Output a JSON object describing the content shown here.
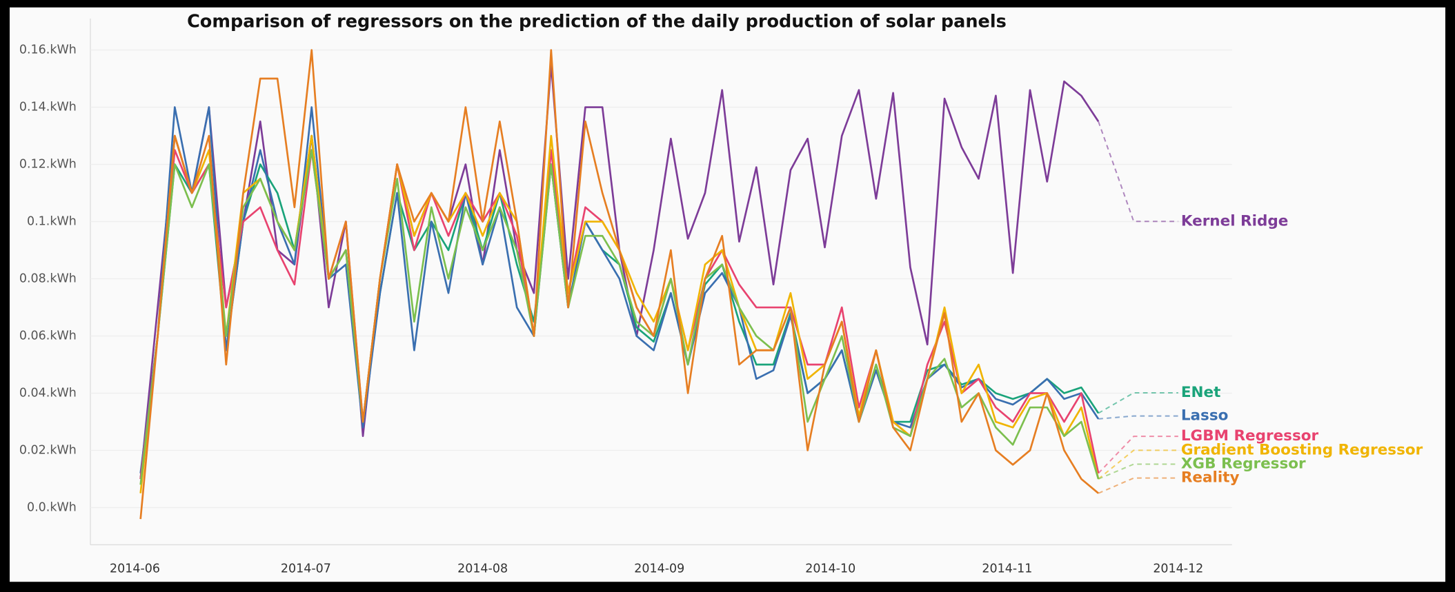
{
  "chart_data": {
    "type": "line",
    "title": "Comparison of regressors on the prediction of the daily production of solar panels",
    "x": [
      "2014-06-02",
      "2014-06-05",
      "2014-06-08",
      "2014-06-11",
      "2014-06-14",
      "2014-06-17",
      "2014-06-20",
      "2014-06-23",
      "2014-06-26",
      "2014-06-29",
      "2014-07-02",
      "2014-07-05",
      "2014-07-08",
      "2014-07-11",
      "2014-07-14",
      "2014-07-17",
      "2014-07-20",
      "2014-07-23",
      "2014-07-26",
      "2014-07-29",
      "2014-08-01",
      "2014-08-04",
      "2014-08-07",
      "2014-08-10",
      "2014-08-13",
      "2014-08-16",
      "2014-08-19",
      "2014-08-22",
      "2014-08-25",
      "2014-08-28",
      "2014-08-31",
      "2014-09-03",
      "2014-09-06",
      "2014-09-09",
      "2014-09-12",
      "2014-09-15",
      "2014-09-18",
      "2014-09-21",
      "2014-09-24",
      "2014-09-27",
      "2014-09-30",
      "2014-10-03",
      "2014-10-06",
      "2014-10-09",
      "2014-10-12",
      "2014-10-15",
      "2014-10-18",
      "2014-10-21",
      "2014-10-24",
      "2014-10-27",
      "2014-10-30",
      "2014-11-02",
      "2014-11-05",
      "2014-11-08",
      "2014-11-11",
      "2014-11-14",
      "2014-11-17"
    ],
    "series": [
      {
        "name": "Kernel Ridge",
        "color": "#7d3c98",
        "values": [
          0.01,
          0.07,
          0.13,
          0.11,
          0.14,
          0.07,
          0.1,
          0.135,
          0.09,
          0.085,
          0.13,
          0.07,
          0.1,
          0.025,
          0.08,
          0.12,
          0.095,
          0.11,
          0.1,
          0.12,
          0.085,
          0.125,
          0.09,
          0.075,
          0.155,
          0.08,
          0.14,
          0.14,
          0.09,
          0.06,
          0.09,
          0.129,
          0.094,
          0.11,
          0.146,
          0.093,
          0.119,
          0.078,
          0.118,
          0.129,
          0.091,
          0.13,
          0.146,
          0.108,
          0.145,
          0.084,
          0.057,
          0.143,
          0.126,
          0.115,
          0.144,
          0.082,
          0.146,
          0.114,
          0.149,
          0.144,
          0.135
        ]
      },
      {
        "name": "ENet",
        "color": "#1aa37a",
        "values": [
          0.01,
          0.06,
          0.12,
          0.11,
          0.12,
          0.055,
          0.1,
          0.12,
          0.11,
          0.09,
          0.13,
          0.08,
          0.09,
          0.03,
          0.075,
          0.11,
          0.09,
          0.1,
          0.09,
          0.11,
          0.09,
          0.11,
          0.085,
          0.065,
          0.12,
          0.07,
          0.1,
          0.09,
          0.085,
          0.063,
          0.058,
          0.075,
          0.05,
          0.078,
          0.085,
          0.065,
          0.05,
          0.05,
          0.068,
          0.04,
          0.045,
          0.055,
          0.03,
          0.05,
          0.03,
          0.03,
          0.048,
          0.05,
          0.043,
          0.045,
          0.04,
          0.038,
          0.04,
          0.045,
          0.04,
          0.042,
          0.033
        ]
      },
      {
        "name": "Lasso",
        "color": "#3a6fb0",
        "values": [
          0.012,
          0.06,
          0.14,
          0.11,
          0.14,
          0.055,
          0.1,
          0.125,
          0.1,
          0.085,
          0.14,
          0.08,
          0.085,
          0.028,
          0.075,
          0.11,
          0.055,
          0.1,
          0.075,
          0.11,
          0.085,
          0.105,
          0.07,
          0.06,
          0.12,
          0.07,
          0.1,
          0.09,
          0.08,
          0.06,
          0.055,
          0.075,
          0.05,
          0.075,
          0.082,
          0.07,
          0.045,
          0.048,
          0.067,
          0.04,
          0.045,
          0.055,
          0.03,
          0.048,
          0.03,
          0.028,
          0.045,
          0.05,
          0.042,
          0.045,
          0.038,
          0.036,
          0.04,
          0.045,
          0.038,
          0.04,
          0.031
        ]
      },
      {
        "name": "LGBM Regressor",
        "color": "#e8436f",
        "values": [
          0.01,
          0.06,
          0.125,
          0.11,
          0.12,
          0.07,
          0.1,
          0.105,
          0.09,
          0.078,
          0.125,
          0.08,
          0.1,
          0.03,
          0.08,
          0.12,
          0.09,
          0.11,
          0.095,
          0.11,
          0.1,
          0.11,
          0.095,
          0.06,
          0.125,
          0.075,
          0.105,
          0.1,
          0.09,
          0.07,
          0.06,
          0.08,
          0.055,
          0.08,
          0.09,
          0.078,
          0.07,
          0.07,
          0.07,
          0.05,
          0.05,
          0.07,
          0.035,
          0.055,
          0.03,
          0.025,
          0.05,
          0.065,
          0.04,
          0.045,
          0.035,
          0.03,
          0.04,
          0.04,
          0.03,
          0.04,
          0.012
        ]
      },
      {
        "name": "Gradient Boosting Regressor",
        "color": "#f0b400",
        "values": [
          0.005,
          0.06,
          0.13,
          0.11,
          0.125,
          0.06,
          0.11,
          0.115,
          0.1,
          0.09,
          0.13,
          0.08,
          0.09,
          0.03,
          0.08,
          0.12,
          0.095,
          0.11,
          0.1,
          0.11,
          0.095,
          0.11,
          0.1,
          0.06,
          0.13,
          0.075,
          0.1,
          0.1,
          0.09,
          0.075,
          0.065,
          0.08,
          0.055,
          0.085,
          0.09,
          0.07,
          0.055,
          0.055,
          0.075,
          0.045,
          0.05,
          0.065,
          0.032,
          0.055,
          0.03,
          0.025,
          0.045,
          0.07,
          0.04,
          0.05,
          0.03,
          0.028,
          0.038,
          0.04,
          0.025,
          0.035,
          0.01
        ]
      },
      {
        "name": "XGB Regressor",
        "color": "#7cbf4f",
        "values": [
          0.008,
          0.06,
          0.12,
          0.105,
          0.12,
          0.06,
          0.105,
          0.115,
          0.1,
          0.09,
          0.125,
          0.08,
          0.09,
          0.03,
          0.08,
          0.115,
          0.065,
          0.105,
          0.08,
          0.105,
          0.09,
          0.105,
          0.09,
          0.06,
          0.12,
          0.07,
          0.095,
          0.095,
          0.085,
          0.065,
          0.06,
          0.08,
          0.05,
          0.08,
          0.085,
          0.07,
          0.06,
          0.055,
          0.07,
          0.03,
          0.045,
          0.06,
          0.03,
          0.05,
          0.028,
          0.025,
          0.045,
          0.052,
          0.035,
          0.04,
          0.028,
          0.022,
          0.035,
          0.035,
          0.025,
          0.03,
          0.01
        ]
      },
      {
        "name": "Reality",
        "color": "#e67e22",
        "values": [
          -0.004,
          0.06,
          0.13,
          0.11,
          0.13,
          0.05,
          0.11,
          0.15,
          0.15,
          0.105,
          0.16,
          0.08,
          0.1,
          0.03,
          0.08,
          0.12,
          0.1,
          0.11,
          0.1,
          0.14,
          0.1,
          0.135,
          0.1,
          0.06,
          0.16,
          0.07,
          0.135,
          0.11,
          0.09,
          0.07,
          0.06,
          0.09,
          0.04,
          0.08,
          0.095,
          0.05,
          0.055,
          0.055,
          0.07,
          0.02,
          0.05,
          0.065,
          0.03,
          0.055,
          0.028,
          0.02,
          0.045,
          0.068,
          0.03,
          0.04,
          0.02,
          0.015,
          0.02,
          0.04,
          0.02,
          0.01,
          0.005
        ]
      }
    ],
    "xticks": [
      "2014-06",
      "2014-07",
      "2014-08",
      "2014-09",
      "2014-10",
      "2014-11",
      "2014-12"
    ],
    "ylim": [
      -0.013,
      0.171
    ],
    "yticks": [
      {
        "value": 0,
        "label": "0.0.kWh"
      },
      {
        "value": 0.02,
        "label": "0.02.kWh"
      },
      {
        "value": 0.04,
        "label": "0.04.kWh"
      },
      {
        "value": 0.06,
        "label": "0.06.kWh"
      },
      {
        "value": 0.08,
        "label": "0.08.kWh"
      },
      {
        "value": 0.1,
        "label": "0.1.kWh"
      },
      {
        "value": 0.12,
        "label": "0.12.kWh"
      },
      {
        "value": 0.14,
        "label": "0.14.kWh"
      },
      {
        "value": 0.16,
        "label": "0.16.kWh"
      }
    ],
    "grid": true
  }
}
